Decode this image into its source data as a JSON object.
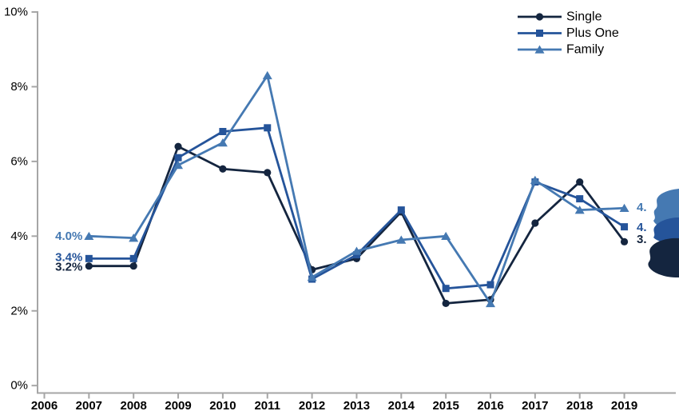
{
  "chart_data": {
    "type": "line",
    "title": "",
    "xlabel": "",
    "ylabel": "",
    "xlim": [
      2006,
      2019
    ],
    "ylim": [
      0,
      10
    ],
    "grid": false,
    "legend_position": "top-right",
    "x_tick_labels": [
      "2006",
      "2007",
      "2008",
      "2009",
      "2010",
      "2011",
      "2012",
      "2013",
      "2014",
      "2015",
      "2016",
      "2017",
      "2018",
      "2019"
    ],
    "y_tick_labels": [
      "0%",
      "2%",
      "4%",
      "6%",
      "8%",
      "10%"
    ],
    "y_tick_values": [
      0,
      2,
      4,
      6,
      8,
      10
    ],
    "years": [
      2007,
      2008,
      2009,
      2010,
      2011,
      2012,
      2013,
      2014,
      2015,
      2016,
      2017,
      2018,
      2019
    ],
    "series": [
      {
        "name": "Single",
        "marker": "circle",
        "color": "#14253f",
        "values": [
          3.2,
          3.2,
          6.4,
          5.8,
          5.7,
          3.1,
          3.4,
          4.65,
          2.2,
          2.3,
          4.35,
          5.45,
          3.85
        ],
        "start_label": "3.2%",
        "end_label_visible": "3."
      },
      {
        "name": "Plus One",
        "marker": "square",
        "color": "#25549a",
        "values": [
          3.4,
          3.4,
          6.1,
          6.8,
          6.9,
          2.85,
          3.5,
          4.7,
          2.6,
          2.7,
          5.45,
          5.0,
          4.25
        ],
        "start_label": "3.4%",
        "end_label_visible": "4."
      },
      {
        "name": "Family",
        "marker": "triangle",
        "color": "#4579b2",
        "values": [
          4.0,
          3.95,
          5.9,
          6.5,
          8.3,
          2.9,
          3.6,
          3.9,
          4.0,
          2.2,
          5.5,
          4.7,
          4.75
        ],
        "start_label": "4.0%",
        "end_label_visible": "4."
      }
    ],
    "legend_items": [
      "Single",
      "Plus One",
      "Family"
    ],
    "axis_color": "#a6a6a6",
    "tick_label_color": "#000000",
    "edge_blob_colors": [
      "#4579b2",
      "#25549a",
      "#14253f"
    ]
  }
}
